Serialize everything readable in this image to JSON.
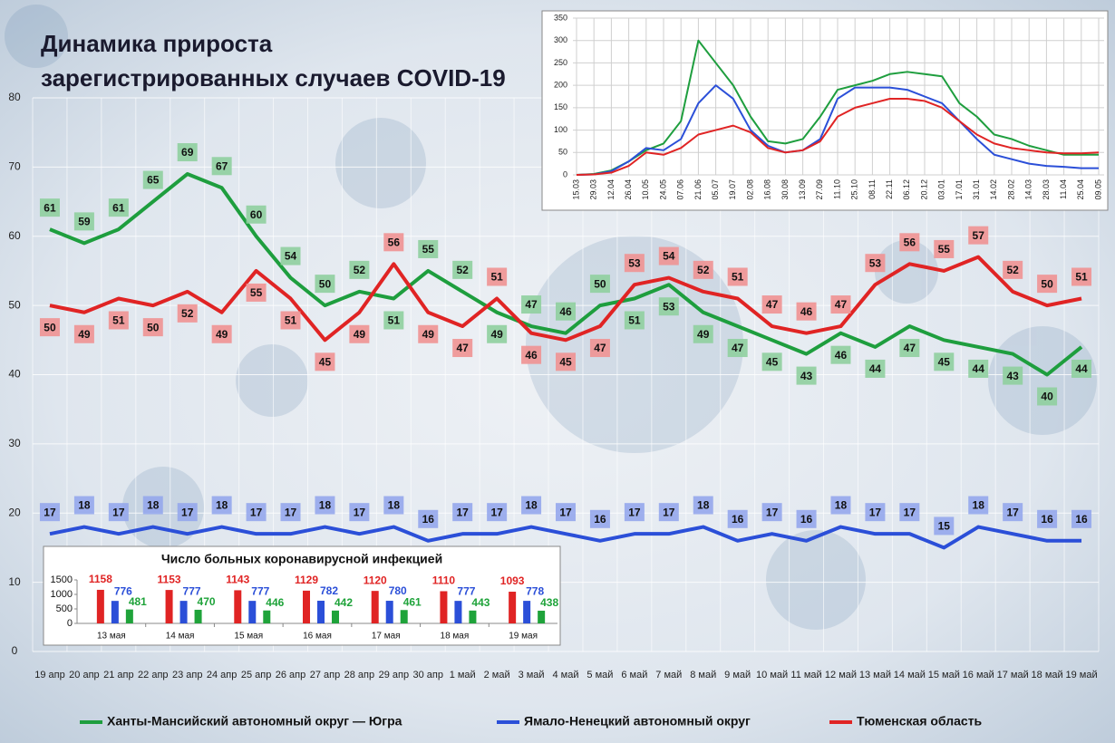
{
  "chart_data": [
    {
      "type": "line",
      "title": [
        "Динамика прироста",
        "зарегистрированных случаев COVID-19"
      ],
      "categories": [
        "19 апр",
        "20 апр",
        "21 апр",
        "22 апр",
        "23 апр",
        "24 апр",
        "25 апр",
        "26 апр",
        "27 апр",
        "28 апр",
        "29 апр",
        "30 апр",
        "1 май",
        "2 май",
        "3 май",
        "4 май",
        "5 май",
        "6 май",
        "7 май",
        "8 май",
        "9 май",
        "10 май",
        "11 май",
        "12 май",
        "13 май",
        "14 май",
        "15 май",
        "16 май",
        "17 май",
        "18 май",
        "19 май"
      ],
      "series": [
        {
          "name": "Ханты-Мансийский автономный округ — Югра",
          "color": "#1e9e3e",
          "values": [
            61,
            59,
            61,
            65,
            69,
            67,
            60,
            54,
            50,
            52,
            51,
            55,
            52,
            49,
            47,
            46,
            50,
            51,
            53,
            49,
            47,
            45,
            43,
            46,
            44,
            47,
            45,
            44,
            43,
            40,
            44
          ]
        },
        {
          "name": "Ямало-Ненецкий автономный округ",
          "color": "#2b4fd8",
          "values": [
            17,
            18,
            17,
            18,
            17,
            18,
            17,
            17,
            18,
            17,
            18,
            16,
            17,
            17,
            18,
            17,
            16,
            17,
            17,
            18,
            16,
            17,
            16,
            18,
            17,
            17,
            15,
            18,
            17,
            16,
            16
          ]
        },
        {
          "name": "Тюменская область",
          "color": "#e02424",
          "values": [
            50,
            49,
            51,
            50,
            52,
            49,
            55,
            51,
            45,
            49,
            56,
            49,
            47,
            51,
            46,
            45,
            47,
            53,
            54,
            52,
            51,
            47,
            46,
            47,
            53,
            56,
            55,
            57,
            52,
            50,
            51
          ]
        }
      ],
      "ylim": [
        0,
        80
      ],
      "yticks": [
        0,
        10,
        20,
        30,
        40,
        50,
        60,
        70,
        80
      ],
      "grid": true,
      "legend": "bottom"
    },
    {
      "type": "line",
      "categories": [
        "15.03",
        "29.03",
        "12.04",
        "26.04",
        "10.05",
        "24.05",
        "07.06",
        "21.06",
        "05.07",
        "19.07",
        "02.08",
        "16.08",
        "30.08",
        "13.09",
        "27.09",
        "11.10",
        "25.10",
        "08.11",
        "22.11",
        "06.12",
        "20.12",
        "03.01",
        "17.01",
        "31.01",
        "14.02",
        "28.02",
        "14.03",
        "28.03",
        "11.04",
        "25.04",
        "09.05"
      ],
      "series": [
        {
          "color": "#1e9e3e",
          "values": [
            0,
            2,
            10,
            30,
            55,
            70,
            120,
            300,
            250,
            200,
            130,
            75,
            70,
            80,
            130,
            190,
            200,
            210,
            225,
            230,
            225,
            220,
            160,
            130,
            90,
            80,
            65,
            55,
            45,
            45,
            45
          ]
        },
        {
          "color": "#2b4fd8",
          "values": [
            0,
            1,
            8,
            30,
            60,
            55,
            80,
            160,
            200,
            170,
            100,
            65,
            50,
            55,
            80,
            170,
            195,
            195,
            195,
            190,
            175,
            160,
            120,
            80,
            45,
            35,
            25,
            20,
            18,
            15,
            15
          ]
        },
        {
          "color": "#e02424",
          "values": [
            0,
            1,
            5,
            20,
            50,
            45,
            60,
            90,
            100,
            110,
            95,
            60,
            50,
            55,
            75,
            130,
            150,
            160,
            170,
            170,
            165,
            150,
            120,
            90,
            70,
            60,
            55,
            50,
            48,
            48,
            50
          ]
        }
      ],
      "ylim": [
        0,
        350
      ],
      "yticks": [
        0,
        50,
        100,
        150,
        200,
        250,
        300,
        350
      ],
      "grid": true
    },
    {
      "type": "bar",
      "title": "Число больных  коронавирусной  инфекцией",
      "categories": [
        "13 мая",
        "14 мая",
        "15 мая",
        "16 мая",
        "17 мая",
        "18 мая",
        "19 мая"
      ],
      "series": [
        {
          "color": "#e02424",
          "values": [
            1158,
            1153,
            1143,
            1129,
            1120,
            1110,
            1093
          ]
        },
        {
          "color": "#2b4fd8",
          "values": [
            776,
            777,
            777,
            782,
            780,
            777,
            778
          ]
        },
        {
          "color": "#1fa33a",
          "values": [
            481,
            470,
            446,
            442,
            461,
            443,
            438
          ]
        }
      ],
      "ylim": [
        0,
        1500
      ],
      "yticks": [
        0,
        500,
        1000,
        1500
      ]
    }
  ]
}
